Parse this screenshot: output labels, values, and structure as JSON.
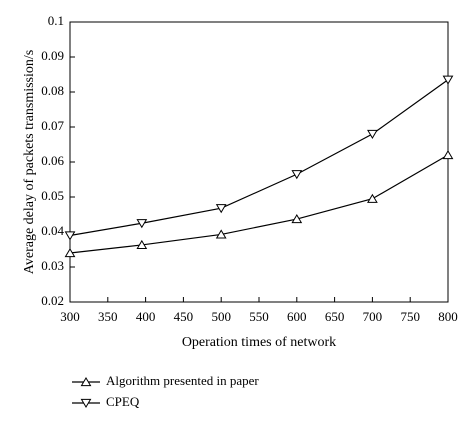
{
  "chart_data": {
    "type": "line",
    "x_label": "Operation times of network",
    "y_label": "Average delay of packets transmission/s",
    "x": [
      300,
      395,
      500,
      600,
      700,
      800
    ],
    "series": [
      {
        "name": "Algorithm presented in paper",
        "color": "#000000",
        "marker": "triangle-up",
        "values": [
          0.034,
          0.0363,
          0.0393,
          0.0437,
          0.0495,
          0.062
        ]
      },
      {
        "name": "CPEQ",
        "color": "#000000",
        "marker": "triangle-down",
        "values": [
          0.039,
          0.0425,
          0.0468,
          0.0565,
          0.068,
          0.0835
        ]
      }
    ],
    "xlim": [
      300,
      800
    ],
    "xticks": [
      300,
      350,
      400,
      450,
      500,
      550,
      600,
      650,
      700,
      750,
      800
    ],
    "ylim": [
      0.02,
      0.1
    ],
    "yticks": [
      0.02,
      0.03,
      0.04,
      0.05,
      0.06,
      0.07,
      0.08,
      0.09,
      0.1
    ],
    "grid": false,
    "legend": "bottom-left"
  }
}
